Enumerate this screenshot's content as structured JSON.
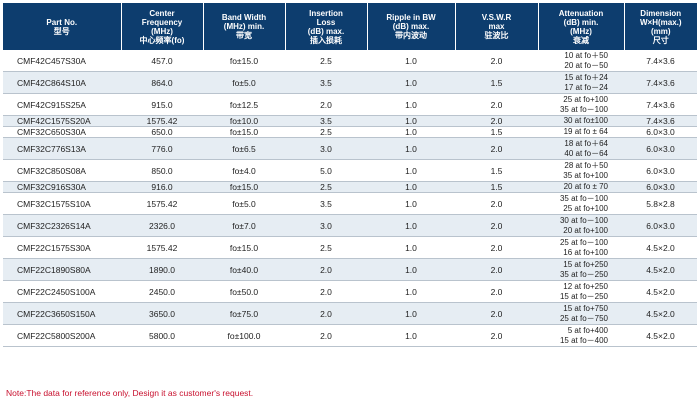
{
  "headers": [
    [
      "Part No.",
      "型号"
    ],
    [
      "Center",
      "Frequency",
      "(MHz)",
      "中心频率(fo)"
    ],
    [
      "Band Width",
      "(MHz) min.",
      "带宽"
    ],
    [
      "Insertion",
      "Loss",
      "(dB) max.",
      "插入损耗"
    ],
    [
      "Ripple in BW",
      "(dB) max.",
      "带内波动"
    ],
    [
      "V.S.W.R",
      "max",
      "驻波比"
    ],
    [
      "Attenuation",
      "(dB) min.",
      "(MHz)",
      "衰减"
    ],
    [
      "Dimension",
      "W×H(max.)",
      "(mm)",
      "尺寸"
    ]
  ],
  "rows": [
    {
      "part": "CMF42C457S30A",
      "freq": "457.0",
      "bw": "fo±15.0",
      "loss": "2.5",
      "ripple": "1.0",
      "vswr": "2.0",
      "att": [
        "10 at fo＋50",
        "20 at fo－50"
      ],
      "dim": "7.4×3.6"
    },
    {
      "part": "CMF42C864S10A",
      "freq": "864.0",
      "bw": "fo±5.0",
      "loss": "3.5",
      "ripple": "1.0",
      "vswr": "1.5",
      "att": [
        "15 at fo＋24",
        "17 at fo－24"
      ],
      "dim": "7.4×3.6"
    },
    {
      "part": "CMF42C915S25A",
      "freq": "915.0",
      "bw": "fo±12.5",
      "loss": "2.0",
      "ripple": "1.0",
      "vswr": "2.0",
      "att": [
        "25 at fo+100",
        "35 at fo－100"
      ],
      "dim": "7.4×3.6"
    },
    {
      "part": "CMF42C1575S20A",
      "freq": "1575.42",
      "bw": "fo±10.0",
      "loss": "3.5",
      "ripple": "1.0",
      "vswr": "2.0",
      "att": [
        "30 at fo±100"
      ],
      "dim": "7.4×3.6"
    },
    {
      "part": "CMF32C650S30A",
      "freq": "650.0",
      "bw": "fo±15.0",
      "loss": "2.5",
      "ripple": "1.0",
      "vswr": "1.5",
      "att": [
        "19 at fo ± 64"
      ],
      "dim": "6.0×3.0"
    },
    {
      "part": "CMF32C776S13A",
      "freq": "776.0",
      "bw": "fo±6.5",
      "loss": "3.0",
      "ripple": "1.0",
      "vswr": "2.0",
      "att": [
        "18 at fo＋64",
        "40 at fo－64"
      ],
      "dim": "6.0×3.0"
    },
    {
      "part": "CMF32C850S08A",
      "freq": "850.0",
      "bw": "fo±4.0",
      "loss": "5.0",
      "ripple": "1.0",
      "vswr": "1.5",
      "att": [
        "28 at fo＋50",
        "35 at fo+100"
      ],
      "dim": "6.0×3.0"
    },
    {
      "part": "CMF32C916S30A",
      "freq": "916.0",
      "bw": "fo±15.0",
      "loss": "2.5",
      "ripple": "1.0",
      "vswr": "1.5",
      "att": [
        "20 at fo ± 70"
      ],
      "dim": "6.0×3.0"
    },
    {
      "part": "CMF32C1575S10A",
      "freq": "1575.42",
      "bw": "fo±5.0",
      "loss": "3.5",
      "ripple": "1.0",
      "vswr": "2.0",
      "att": [
        "35 at fo－100",
        "25 at fo+100"
      ],
      "dim": "5.8×2.8"
    },
    {
      "part": "CMF32C2326S14A",
      "freq": "2326.0",
      "bw": "fo±7.0",
      "loss": "3.0",
      "ripple": "1.0",
      "vswr": "2.0",
      "att": [
        "30 at fo－100",
        "20 at fo+100"
      ],
      "dim": "6.0×3.0"
    },
    {
      "part": "CMF22C1575S30A",
      "freq": "1575.42",
      "bw": "fo±15.0",
      "loss": "2.5",
      "ripple": "1.0",
      "vswr": "2.0",
      "att": [
        "25 at fo－100",
        "16 at fo+100"
      ],
      "dim": "4.5×2.0"
    },
    {
      "part": "CMF22C1890S80A",
      "freq": "1890.0",
      "bw": "fo±40.0",
      "loss": "2.0",
      "ripple": "1.0",
      "vswr": "2.0",
      "att": [
        "15 at fo+250",
        "35 at fo－250"
      ],
      "dim": "4.5×2.0"
    },
    {
      "part": "CMF22C2450S100A",
      "freq": "2450.0",
      "bw": "fo±50.0",
      "loss": "2.0",
      "ripple": "1.0",
      "vswr": "2.0",
      "att": [
        "12 at fo+250",
        "15 at fo－250"
      ],
      "dim": "4.5×2.0"
    },
    {
      "part": "CMF22C3650S150A",
      "freq": "3650.0",
      "bw": "fo±75.0",
      "loss": "2.0",
      "ripple": "1.0",
      "vswr": "2.0",
      "att": [
        "15 at fo+750",
        "25 at fo－750"
      ],
      "dim": "4.5×2.0"
    },
    {
      "part": "CMF22C5800S200A",
      "freq": "5800.0",
      "bw": "fo±100.0",
      "loss": "2.0",
      "ripple": "1.0",
      "vswr": "2.0",
      "att": [
        "5 at fo+400",
        "15 at fo－400"
      ],
      "dim": "4.5×2.0"
    }
  ],
  "note": "Note:The data for reference only, Design it as customer's request."
}
